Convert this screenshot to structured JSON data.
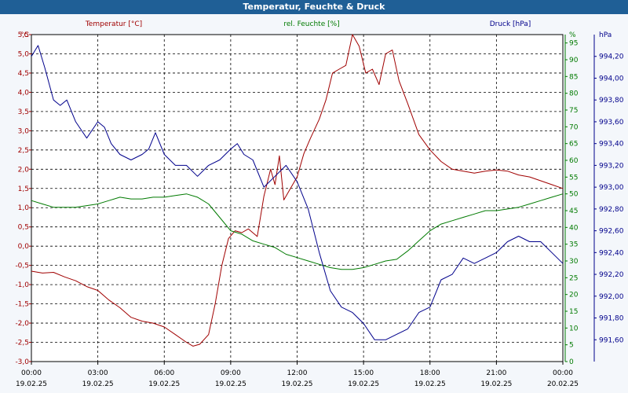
{
  "window": {
    "title": "Temperatur, Feuchte & Druck"
  },
  "chart_data": {
    "type": "line",
    "title": "Temperatur, Feuchte & Druck",
    "grid": true,
    "x_range_hours": [
      0,
      24
    ],
    "x_ticks": [
      {
        "h": 0,
        "time": "00:00",
        "date": "19.02.25"
      },
      {
        "h": 3,
        "time": "03:00",
        "date": "19.02.25"
      },
      {
        "h": 6,
        "time": "06:00",
        "date": "19.02.25"
      },
      {
        "h": 9,
        "time": "09:00",
        "date": "19.02.25"
      },
      {
        "h": 12,
        "time": "12:00",
        "date": "19.02.25"
      },
      {
        "h": 15,
        "time": "15:00",
        "date": "19.02.25"
      },
      {
        "h": 18,
        "time": "18:00",
        "date": "19.02.25"
      },
      {
        "h": 21,
        "time": "21:00",
        "date": "19.02.25"
      },
      {
        "h": 24,
        "time": "00:00",
        "date": "20.02.25"
      }
    ],
    "axes": {
      "temperature": {
        "unit": "°C",
        "legend": "Temperatur [°C]",
        "color": "#a00000",
        "range": [
          -3.0,
          5.5
        ],
        "ticks": [
          "5,5",
          "5,0",
          "4,5",
          "4,0",
          "3,5",
          "3,0",
          "2,5",
          "2,0",
          "1,5",
          "1,0",
          "0,5",
          "0,0",
          "-0,5",
          "-1,0",
          "-1,5",
          "-2,0",
          "-2,5",
          "-3,0"
        ],
        "tick_values": [
          5.5,
          5.0,
          4.5,
          4.0,
          3.5,
          3.0,
          2.5,
          2.0,
          1.5,
          1.0,
          0.5,
          0.0,
          -0.5,
          -1.0,
          -1.5,
          -2.0,
          -2.5,
          -3.0
        ]
      },
      "humidity": {
        "unit": "%",
        "legend": "rel. Feuchte [%]",
        "color": "#007a00",
        "range": [
          0,
          97.5
        ],
        "ticks": [
          "0",
          "5",
          "10",
          "15",
          "20",
          "25",
          "30",
          "35",
          "40",
          "45",
          "50",
          "55",
          "60",
          "65",
          "70",
          "75",
          "80",
          "85",
          "90",
          "95"
        ],
        "tick_values": [
          0,
          5,
          10,
          15,
          20,
          25,
          30,
          35,
          40,
          45,
          50,
          55,
          60,
          65,
          70,
          75,
          80,
          85,
          90,
          95
        ]
      },
      "pressure": {
        "unit": "hPa",
        "legend": "Druck [hPa]",
        "color": "#00008b",
        "range": [
          991.4,
          994.4
        ],
        "ticks": [
          "991,60",
          "991,80",
          "992,00",
          "992,20",
          "992,40",
          "992,60",
          "992,80",
          "993,00",
          "993,20",
          "993,40",
          "993,60",
          "993,80",
          "994,00",
          "994,20"
        ],
        "tick_values": [
          991.6,
          991.8,
          992.0,
          992.2,
          992.4,
          992.6,
          992.8,
          993.0,
          993.2,
          993.4,
          993.6,
          993.8,
          994.0,
          994.2
        ]
      }
    },
    "series": [
      {
        "name": "Temperatur [°C]",
        "axis": "temperature",
        "color": "#a00000",
        "x": [
          0,
          0.5,
          1,
          1.5,
          2,
          2.5,
          3,
          3.5,
          4,
          4.5,
          5,
          5.5,
          6,
          6.5,
          7,
          7.3,
          7.6,
          8,
          8.3,
          8.6,
          8.9,
          9.2,
          9.5,
          9.8,
          10.2,
          10.5,
          10.8,
          11,
          11.2,
          11.4,
          11.7,
          12,
          12.3,
          12.6,
          13,
          13.3,
          13.6,
          13.9,
          14.2,
          14.5,
          14.8,
          15.1,
          15.4,
          15.7,
          16,
          16.3,
          16.6,
          17,
          17.5,
          18,
          18.5,
          19,
          19.5,
          20,
          20.5,
          21,
          21.5,
          22,
          22.5,
          23,
          23.5,
          24
        ],
        "values": [
          -0.65,
          -0.7,
          -0.68,
          -0.8,
          -0.9,
          -1.05,
          -1.15,
          -1.4,
          -1.6,
          -1.85,
          -1.95,
          -2.0,
          -2.1,
          -2.3,
          -2.5,
          -2.6,
          -2.55,
          -2.3,
          -1.5,
          -0.5,
          0.2,
          0.4,
          0.35,
          0.45,
          0.25,
          1.3,
          2.0,
          1.6,
          2.35,
          1.2,
          1.5,
          1.8,
          2.4,
          2.8,
          3.3,
          3.8,
          4.5,
          4.6,
          4.7,
          5.5,
          5.2,
          4.5,
          4.6,
          4.2,
          5.0,
          5.1,
          4.3,
          3.7,
          2.9,
          2.5,
          2.2,
          2.0,
          1.95,
          1.9,
          1.95,
          1.98,
          1.95,
          1.85,
          1.8,
          1.7,
          1.6,
          1.5
        ]
      },
      {
        "name": "rel. Feuchte [%]",
        "axis": "humidity",
        "color": "#007a00",
        "x": [
          0,
          0.5,
          1,
          1.5,
          2,
          2.5,
          3,
          3.5,
          4,
          4.5,
          5,
          5.5,
          6,
          6.5,
          7,
          7.5,
          8,
          8.5,
          9,
          9.5,
          10,
          10.5,
          11,
          11.5,
          12,
          12.5,
          13,
          13.5,
          14,
          14.5,
          15,
          15.5,
          16,
          16.5,
          17,
          17.5,
          18,
          18.5,
          19,
          19.5,
          20,
          20.5,
          21,
          21.5,
          22,
          22.5,
          23,
          23.5,
          24
        ],
        "values": [
          48,
          47,
          46,
          46,
          46,
          46.5,
          47,
          48,
          49,
          48.5,
          48.5,
          49,
          49,
          49.5,
          50,
          49,
          47,
          43,
          39,
          38,
          36,
          35,
          34,
          32,
          31,
          30,
          29,
          28,
          27.5,
          27.5,
          28,
          29,
          30,
          30.5,
          33,
          36,
          39,
          41,
          42,
          43,
          44,
          45,
          45,
          45.5,
          46,
          47,
          48,
          49,
          50
        ]
      },
      {
        "name": "Druck [hPa]",
        "axis": "pressure",
        "color": "#00008b",
        "x": [
          0,
          0.3,
          0.6,
          1,
          1.3,
          1.6,
          2,
          2.5,
          3,
          3.3,
          3.6,
          4,
          4.5,
          5,
          5.3,
          5.6,
          6,
          6.5,
          7,
          7.5,
          8,
          8.5,
          9,
          9.3,
          9.6,
          10,
          10.5,
          11,
          11.5,
          12,
          12.5,
          13,
          13.5,
          14,
          14.5,
          15,
          15.5,
          16,
          16.5,
          17,
          17.5,
          18,
          18.5,
          19,
          19.5,
          20,
          20.5,
          21,
          21.5,
          22,
          22.5,
          23,
          23.5,
          24
        ],
        "values": [
          994.2,
          994.3,
          994.1,
          993.8,
          993.75,
          993.8,
          993.6,
          993.45,
          993.6,
          993.55,
          993.4,
          993.3,
          993.25,
          993.3,
          993.35,
          993.5,
          993.3,
          993.2,
          993.2,
          993.1,
          993.2,
          993.25,
          993.35,
          993.4,
          993.3,
          993.25,
          993.0,
          993.1,
          993.2,
          993.05,
          992.8,
          992.4,
          992.05,
          991.9,
          991.85,
          991.75,
          991.6,
          991.6,
          991.65,
          991.7,
          991.85,
          991.9,
          992.15,
          992.2,
          992.35,
          992.3,
          992.35,
          992.4,
          992.5,
          992.55,
          992.5,
          992.5,
          992.4,
          992.3
        ]
      }
    ]
  }
}
